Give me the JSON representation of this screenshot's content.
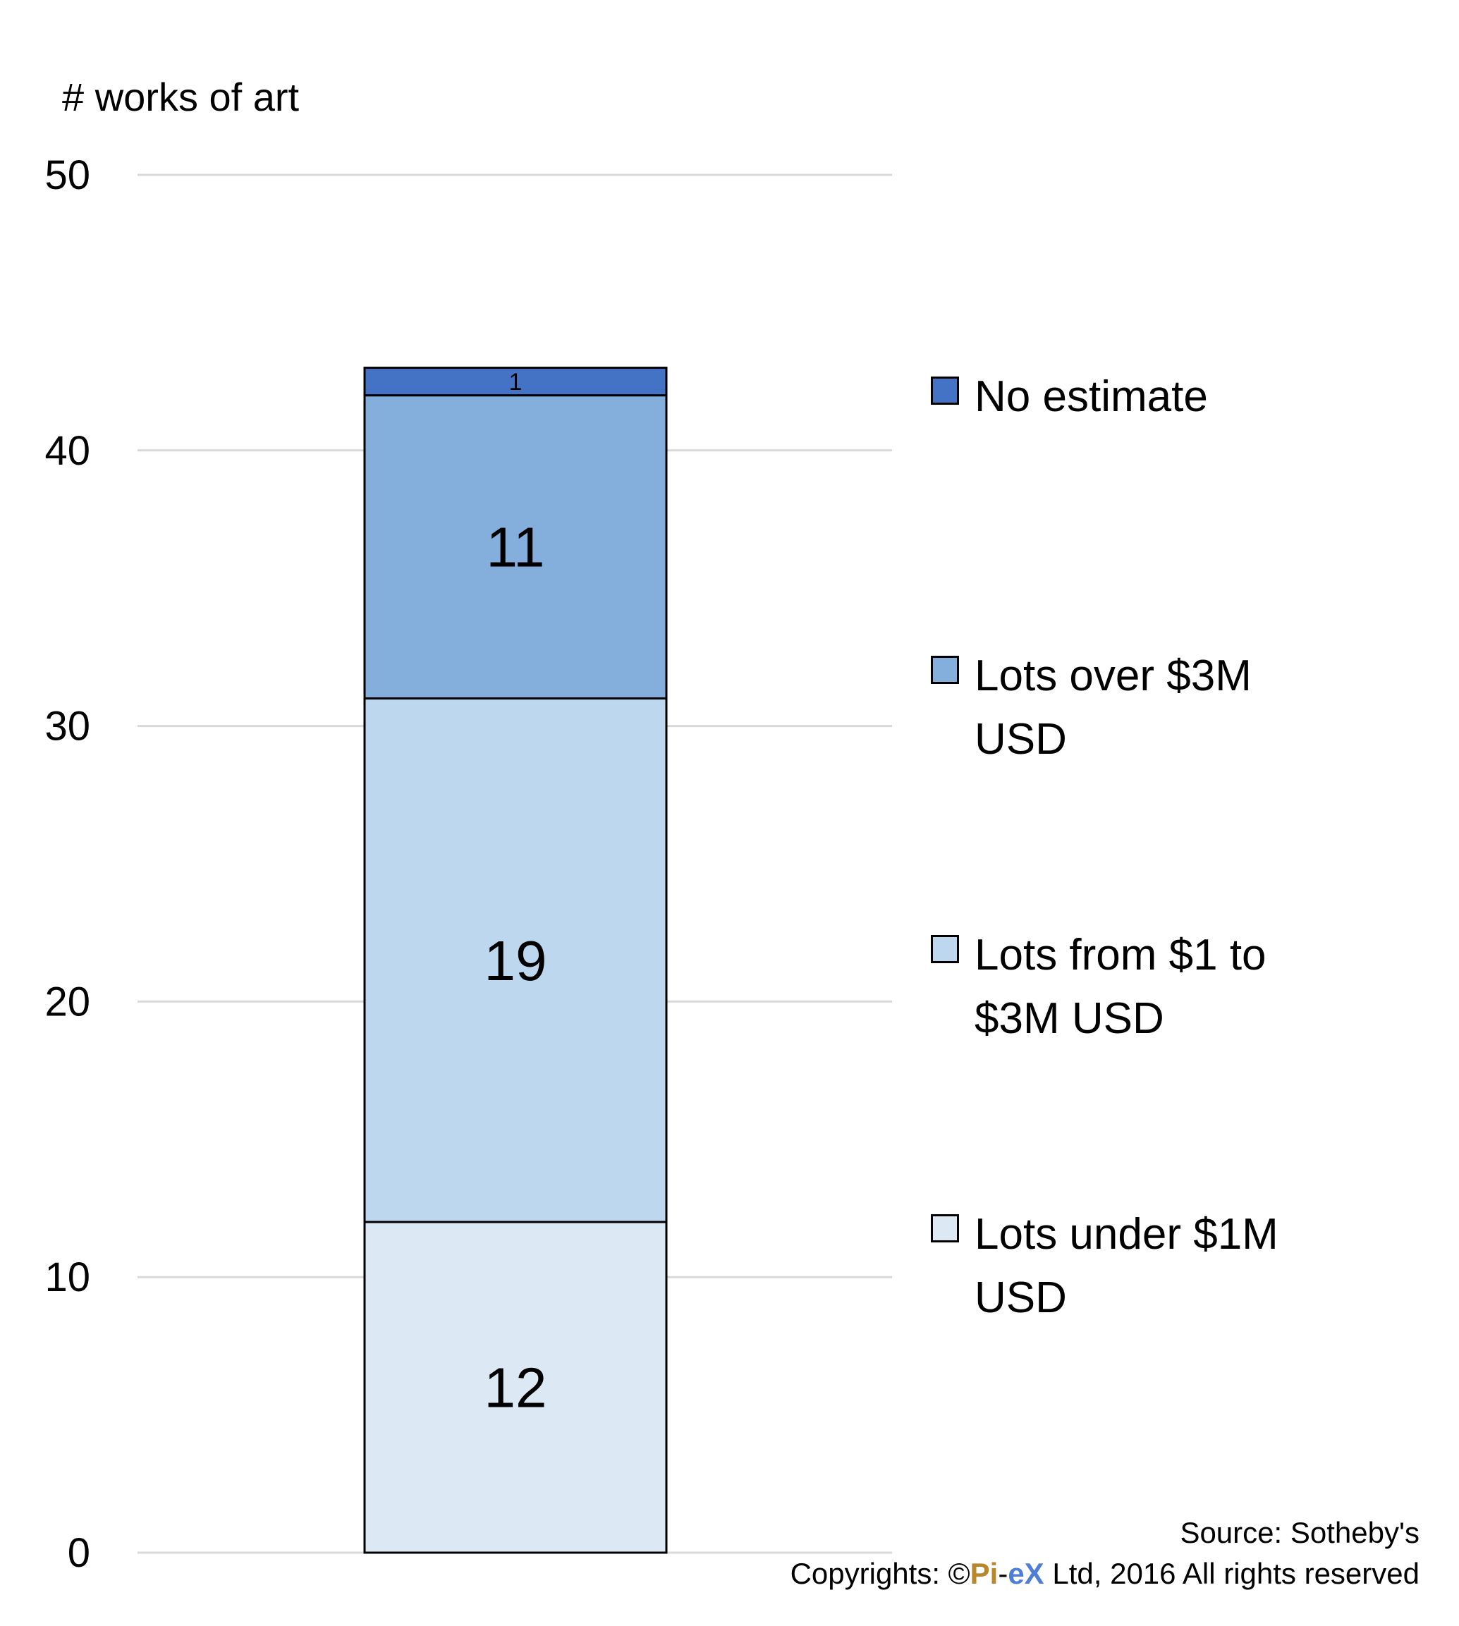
{
  "chart_data": {
    "type": "bar",
    "stacked": true,
    "ylabel": "# works of art",
    "ylim": [
      0,
      50
    ],
    "yticks": [
      "0",
      "10",
      "20",
      "30",
      "40",
      "50"
    ],
    "grid": true,
    "legend_position": "right",
    "series": [
      {
        "name": "Lots under $1M USD",
        "value": 12,
        "label": "12",
        "color": "#dde8f5"
      },
      {
        "name": "Lots from $1 to $3M USD",
        "value": 19,
        "label": "19",
        "color": "#bdd7ee"
      },
      {
        "name": "Lots over $3M USD",
        "value": 11,
        "label": "11",
        "color": "#84aedc"
      },
      {
        "name": "No estimate",
        "value": 1,
        "label": "1",
        "color": "#4472c4"
      }
    ]
  },
  "legend": {
    "no_estimate": "No estimate",
    "over_3m_line1": "Lots over $3M",
    "over_3m_line2": "USD",
    "from_1_to_3m_line1": "Lots from $1 to",
    "from_1_to_3m_line2": "$3M USD",
    "under_1m_line1": "Lots under $1M",
    "under_1m_line2": "USD"
  },
  "footer": {
    "source": "Source: Sotheby's",
    "copyright_prefix": "Copyrights: ©",
    "brand_pi": "Pi",
    "brand_dash": "-",
    "brand_ex": "eX",
    "copyright_suffix": " Ltd, 2016 All rights reserved"
  }
}
